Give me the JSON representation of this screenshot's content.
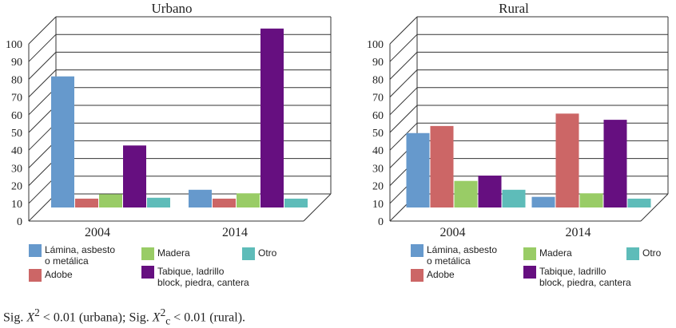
{
  "chart_data": [
    {
      "type": "bar",
      "title": "Urbano",
      "categories": [
        "2004",
        "2014"
      ],
      "yticks": [
        0,
        10,
        20,
        30,
        40,
        50,
        60,
        70,
        80,
        90,
        100
      ],
      "ylim": [
        0,
        100
      ],
      "series": [
        {
          "name": "Lámina, asbesto o metálica",
          "color": "#6699cc",
          "values": [
            74,
            10
          ]
        },
        {
          "name": "Adobe",
          "color": "#cc6666",
          "values": [
            5,
            5
          ]
        },
        {
          "name": "Madera",
          "color": "#99cc66",
          "values": [
            7.5,
            8
          ]
        },
        {
          "name": "Tabique, ladrillo block, piedra, cantera",
          "color": "#660f80",
          "values": [
            35,
            101
          ]
        },
        {
          "name": "Otro",
          "color": "#5ebcb9",
          "values": [
            5.5,
            5
          ]
        }
      ]
    },
    {
      "type": "bar",
      "title": "Rural",
      "categories": [
        "2004",
        "2014"
      ],
      "yticks": [
        0,
        10,
        20,
        30,
        40,
        50,
        60,
        70,
        80,
        90,
        100
      ],
      "ylim": [
        0,
        100
      ],
      "series": [
        {
          "name": "Lámina, asbesto o metálica",
          "color": "#6699cc",
          "values": [
            42,
            6
          ]
        },
        {
          "name": "Adobe",
          "color": "#cc6666",
          "values": [
            46,
            53
          ]
        },
        {
          "name": "Madera",
          "color": "#99cc66",
          "values": [
            15,
            8
          ]
        },
        {
          "name": "Tabique, ladrillo block, piedra, cantera",
          "color": "#660f80",
          "values": [
            18,
            49.5
          ]
        },
        {
          "name": "Otro",
          "color": "#5ebcb9",
          "values": [
            10,
            5
          ]
        }
      ]
    }
  ],
  "legend": {
    "items": [
      {
        "label": "Lámina, asbesto\no metálica",
        "color": "#6699cc"
      },
      {
        "label": "Madera",
        "color": "#99cc66"
      },
      {
        "label": "Otro",
        "color": "#5ebcb9"
      },
      {
        "label": "Adobe",
        "color": "#cc6666"
      },
      {
        "label": "Tabique, ladrillo\nblock, piedra, cantera",
        "color": "#660f80"
      }
    ]
  },
  "footnote": {
    "prefix": "Sig. ",
    "var1": "X",
    "sup1": "2",
    "mid1": " < 0.01 (urbana); Sig. ",
    "var2": "X",
    "sup2": "2",
    "sub2": "c",
    "mid2": " < 0.01 (rural)."
  }
}
